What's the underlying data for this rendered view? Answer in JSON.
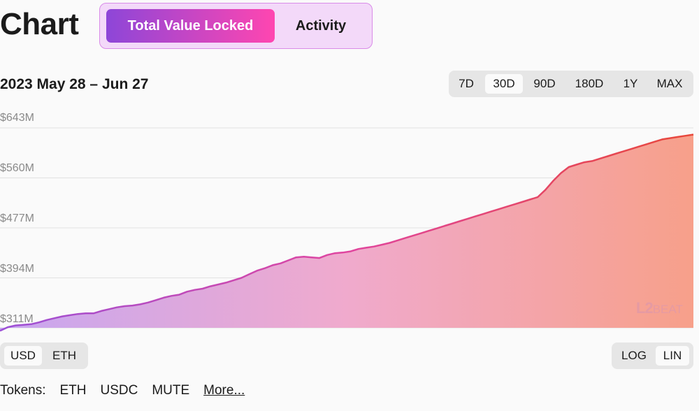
{
  "header": {
    "title": "Chart",
    "tabs": [
      {
        "label": "Total Value Locked",
        "active": true
      },
      {
        "label": "Activity",
        "active": false
      }
    ]
  },
  "date_range": "2023 May 28 – Jun 27",
  "time_ranges": [
    {
      "label": "7D",
      "active": false
    },
    {
      "label": "30D",
      "active": true
    },
    {
      "label": "90D",
      "active": false
    },
    {
      "label": "180D",
      "active": false
    },
    {
      "label": "1Y",
      "active": false
    },
    {
      "label": "MAX",
      "active": false
    }
  ],
  "currency_toggle": [
    {
      "label": "USD",
      "active": true
    },
    {
      "label": "ETH",
      "active": false
    }
  ],
  "scale_toggle": [
    {
      "label": "LOG",
      "active": false
    },
    {
      "label": "LIN",
      "active": true
    }
  ],
  "tokens": {
    "label": "Tokens:",
    "items": [
      "ETH",
      "USDC",
      "MUTE"
    ],
    "more": "More..."
  },
  "watermark": {
    "big": "L2",
    "small": "BEAT"
  },
  "colors": {
    "gradient_start": "#8d46d8",
    "gradient_end": "#ff46b0",
    "line_start": "#9b4fd6",
    "line_mid": "#e0459f",
    "line_end": "#e8473a"
  },
  "chart_data": {
    "type": "area",
    "title": "",
    "xlabel": "",
    "ylabel": "",
    "x_range": [
      "2023-05-28",
      "2023-06-27"
    ],
    "ylim": [
      311,
      643
    ],
    "yticks": [
      311,
      394,
      477,
      560,
      643
    ],
    "ytick_labels": [
      "$311M",
      "$394M",
      "$477M",
      "$560M",
      "$643M"
    ],
    "y_unit": "$M",
    "grid": true,
    "series": [
      {
        "values": [
          306,
          312,
          315,
          316,
          317,
          320,
          324,
          327,
          330,
          332,
          334,
          335,
          335,
          339,
          342,
          345,
          347,
          348,
          350,
          353,
          357,
          361,
          364,
          366,
          371,
          374,
          376,
          380,
          383,
          386,
          390,
          394,
          400,
          406,
          410,
          415,
          418,
          423,
          428,
          429,
          428,
          427,
          432,
          435,
          436,
          438,
          442,
          444,
          446,
          449,
          452,
          456,
          460,
          464,
          468,
          472,
          476,
          480,
          484,
          488,
          492,
          496,
          500,
          504,
          508,
          512,
          516,
          520,
          524,
          528,
          540,
          555,
          568,
          578,
          582,
          586,
          588,
          592,
          596,
          600,
          604,
          608,
          612,
          616,
          620,
          624,
          626,
          628,
          630,
          632
        ]
      }
    ]
  }
}
